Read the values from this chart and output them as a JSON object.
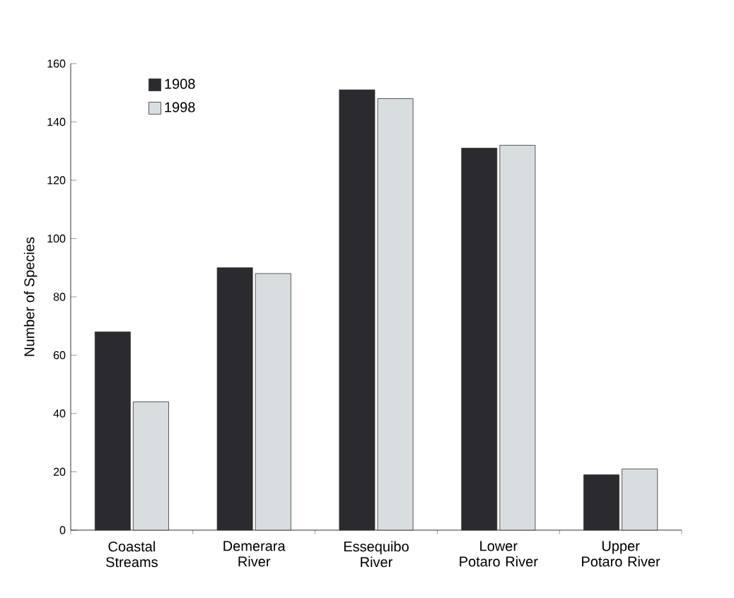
{
  "chart_data": {
    "type": "bar",
    "ylabel": "Number of Species",
    "categories": [
      "Coastal Streams",
      "Demerara River",
      "Essequibo River",
      "Lower Potaro River",
      "Upper Potaro River"
    ],
    "series": [
      {
        "name": "1908",
        "color": "#2b2b2f",
        "values": [
          68,
          90,
          151,
          131,
          19
        ]
      },
      {
        "name": "1998",
        "color": "#d8dde0",
        "values": [
          44,
          88,
          148,
          132,
          21
        ]
      }
    ],
    "ylim": [
      0,
      160
    ],
    "yticks": [
      0,
      20,
      40,
      60,
      80,
      100,
      120,
      140,
      160
    ],
    "legend": "top left"
  }
}
